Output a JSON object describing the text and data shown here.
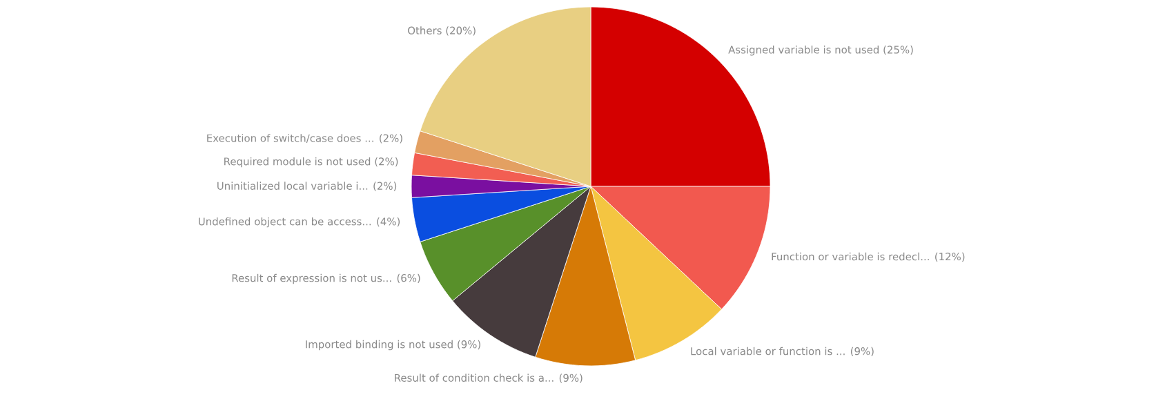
{
  "chart_data": {
    "type": "pie",
    "categories": [
      "Assigned variable is not used",
      "Function or variable is redecl...",
      "Local variable or function is ...",
      "Result of condition check is a...",
      "Imported binding is not used",
      "Result of expression is not us...",
      "Undefined object can be access...",
      "Uninitialized local variable i...",
      "Required module is not used",
      "Execution of switch/case does ...",
      "Others"
    ],
    "values": [
      25,
      12,
      9,
      9,
      9,
      6,
      4,
      2,
      2,
      2,
      20
    ],
    "value_labels": [
      "(25%)",
      "(12%)",
      "(9%)",
      "(9%)",
      "(9%)",
      "(6%)",
      "(4%)",
      "(2%)",
      "(2%)",
      "(2%)",
      "(20%)"
    ],
    "colors": [
      "#d40000",
      "#f2594f",
      "#f4c541",
      "#d67a06",
      "#463b3d",
      "#58902a",
      "#0a4ee0",
      "#7a0fa0",
      "#f25e52",
      "#e3a062",
      "#e8cf82"
    ]
  }
}
